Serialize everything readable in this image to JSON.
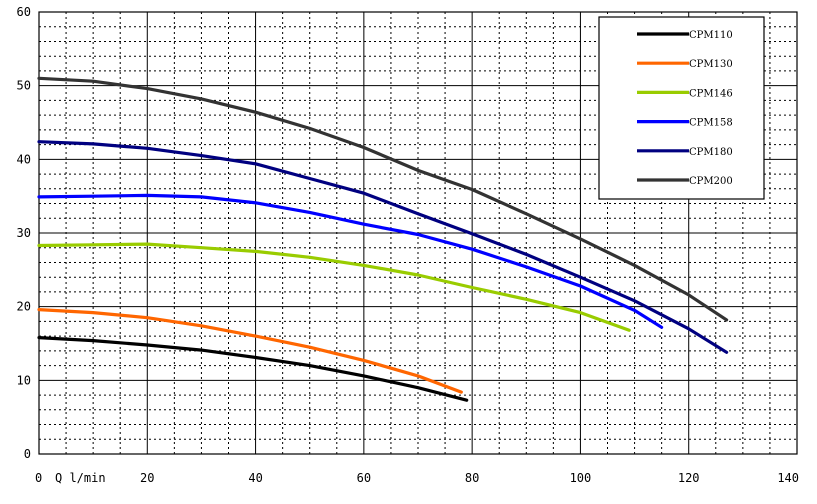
{
  "chart_data": {
    "type": "line",
    "title": "",
    "xlabel": "Q l/min",
    "ylabel": "",
    "xlim": [
      0,
      140
    ],
    "ylim": [
      0,
      60
    ],
    "x_ticks": [
      0,
      20,
      40,
      60,
      80,
      100,
      120,
      140
    ],
    "y_ticks": [
      0,
      10,
      20,
      30,
      40,
      50,
      60
    ],
    "grid": true,
    "grid_minor_style": "dotted",
    "legend_position": "top-right",
    "series": [
      {
        "name": "CPM110",
        "color": "#000000",
        "points": [
          [
            0,
            15.8
          ],
          [
            10,
            15.4
          ],
          [
            20,
            14.8
          ],
          [
            30,
            14.1
          ],
          [
            40,
            13.1
          ],
          [
            50,
            12.0
          ],
          [
            60,
            10.6
          ],
          [
            70,
            9.0
          ],
          [
            79,
            7.3
          ]
        ]
      },
      {
        "name": "CPM130",
        "color": "#ff6600",
        "points": [
          [
            0,
            19.6
          ],
          [
            10,
            19.2
          ],
          [
            20,
            18.5
          ],
          [
            30,
            17.4
          ],
          [
            40,
            16.0
          ],
          [
            50,
            14.5
          ],
          [
            60,
            12.7
          ],
          [
            70,
            10.6
          ],
          [
            78,
            8.4
          ]
        ]
      },
      {
        "name": "CPM146",
        "color": "#99cc00",
        "points": [
          [
            0,
            28.3
          ],
          [
            10,
            28.4
          ],
          [
            20,
            28.5
          ],
          [
            30,
            28.0
          ],
          [
            40,
            27.5
          ],
          [
            50,
            26.7
          ],
          [
            60,
            25.6
          ],
          [
            70,
            24.3
          ],
          [
            80,
            22.6
          ],
          [
            90,
            21.0
          ],
          [
            100,
            19.2
          ],
          [
            109,
            16.8
          ]
        ]
      },
      {
        "name": "CPM158",
        "color": "#0000ff",
        "points": [
          [
            0,
            34.9
          ],
          [
            10,
            35.0
          ],
          [
            20,
            35.1
          ],
          [
            30,
            34.9
          ],
          [
            40,
            34.1
          ],
          [
            50,
            32.8
          ],
          [
            60,
            31.2
          ],
          [
            70,
            29.8
          ],
          [
            80,
            27.8
          ],
          [
            90,
            25.4
          ],
          [
            100,
            22.8
          ],
          [
            110,
            19.5
          ],
          [
            115,
            17.2
          ]
        ]
      },
      {
        "name": "CPM180",
        "color": "#000080",
        "points": [
          [
            0,
            42.4
          ],
          [
            10,
            42.1
          ],
          [
            20,
            41.5
          ],
          [
            30,
            40.5
          ],
          [
            40,
            39.4
          ],
          [
            50,
            37.4
          ],
          [
            60,
            35.4
          ],
          [
            70,
            32.6
          ],
          [
            80,
            29.9
          ],
          [
            90,
            27.1
          ],
          [
            100,
            24.0
          ],
          [
            110,
            20.8
          ],
          [
            120,
            17.0
          ],
          [
            127,
            13.8
          ]
        ]
      },
      {
        "name": "CPM200",
        "color": "#333333",
        "points": [
          [
            0,
            51.0
          ],
          [
            10,
            50.6
          ],
          [
            20,
            49.6
          ],
          [
            30,
            48.2
          ],
          [
            40,
            46.4
          ],
          [
            50,
            44.2
          ],
          [
            60,
            41.6
          ],
          [
            70,
            38.5
          ],
          [
            80,
            35.9
          ],
          [
            90,
            32.6
          ],
          [
            100,
            29.2
          ],
          [
            110,
            25.6
          ],
          [
            120,
            21.6
          ],
          [
            127,
            18.2
          ]
        ]
      }
    ]
  }
}
